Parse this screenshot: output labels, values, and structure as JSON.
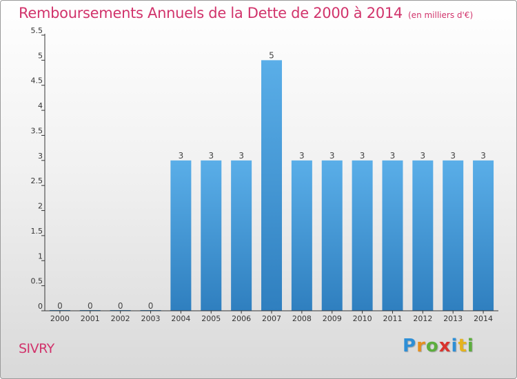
{
  "title": "Remboursements Annuels de la Dette de 2000 à 2014",
  "unit": "(en milliers d'€)",
  "commune": "SIVRY",
  "logo": {
    "letters": [
      "P",
      "r",
      "o",
      "x",
      "i",
      "t",
      "i"
    ],
    "colors": [
      "#2e8fd6",
      "#e58f1f",
      "#5cae3d",
      "#d9332e",
      "#2e8fd6",
      "#e5b31f",
      "#5cae3d"
    ]
  },
  "colors": {
    "title": "#d1336b",
    "bar_top": "#5aaee8",
    "bar_bottom": "#2f7fbf",
    "axis": "#333333"
  },
  "chart_data": {
    "type": "bar",
    "categories": [
      "2000",
      "2001",
      "2002",
      "2003",
      "2004",
      "2005",
      "2006",
      "2007",
      "2008",
      "2009",
      "2010",
      "2011",
      "2012",
      "2013",
      "2014"
    ],
    "values": [
      0,
      0,
      0,
      0,
      3,
      3,
      3,
      5,
      3,
      3,
      3,
      3,
      3,
      3,
      3
    ],
    "value_labels": [
      "0",
      "0",
      "0",
      "0",
      "3",
      "3",
      "3",
      "5",
      "3",
      "3",
      "3",
      "3",
      "3",
      "3",
      "3"
    ],
    "y_ticks": [
      0,
      0.5,
      1,
      1.5,
      2,
      2.5,
      3,
      3.5,
      4,
      4.5,
      5,
      5.5
    ],
    "y_tick_labels": [
      "0",
      "0.5",
      "1",
      "1.5",
      "2",
      "2.5",
      "3",
      "3.5",
      "4",
      "4.5",
      "5",
      "5.5"
    ],
    "ylim": [
      0,
      5.5
    ],
    "grid": false,
    "legend": "none"
  }
}
